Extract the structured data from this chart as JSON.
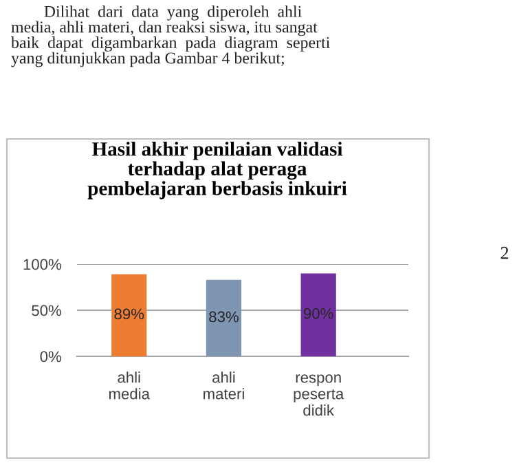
{
  "chart_data": {
    "type": "bar",
    "title": "Hasil akhir penilaian validasi\nterhadap alat peraga\npembelajaran berbasis inkuiri",
    "categories": [
      "ahli\nmedia",
      "ahli\nmateri",
      "respon\npeserta\ndidik"
    ],
    "values": [
      89,
      83,
      90
    ],
    "colors": [
      "#ed7d31",
      "#7f96b2",
      "#7030a0"
    ],
    "ylim": [
      0,
      100
    ],
    "yticks": [
      {
        "value": 0,
        "label": "0%"
      },
      {
        "value": 50,
        "label": "50%"
      },
      {
        "value": 100,
        "label": "100%"
      }
    ],
    "grid": "y",
    "legend": false,
    "data_labels": true,
    "value_labels": [
      "89%",
      "83%",
      "90%"
    ],
    "annotations": [
      "        Dilihat  dari  data  yang  diperoleh  ahli\nmedia, ahli materi, dan reaksi siswa, itu sangat\nbaik  dapat  digambarkan  pada  diagram  seperti\nyang ditunjukkan pada Gambar 4 berikut;",
      "2"
    ]
  }
}
